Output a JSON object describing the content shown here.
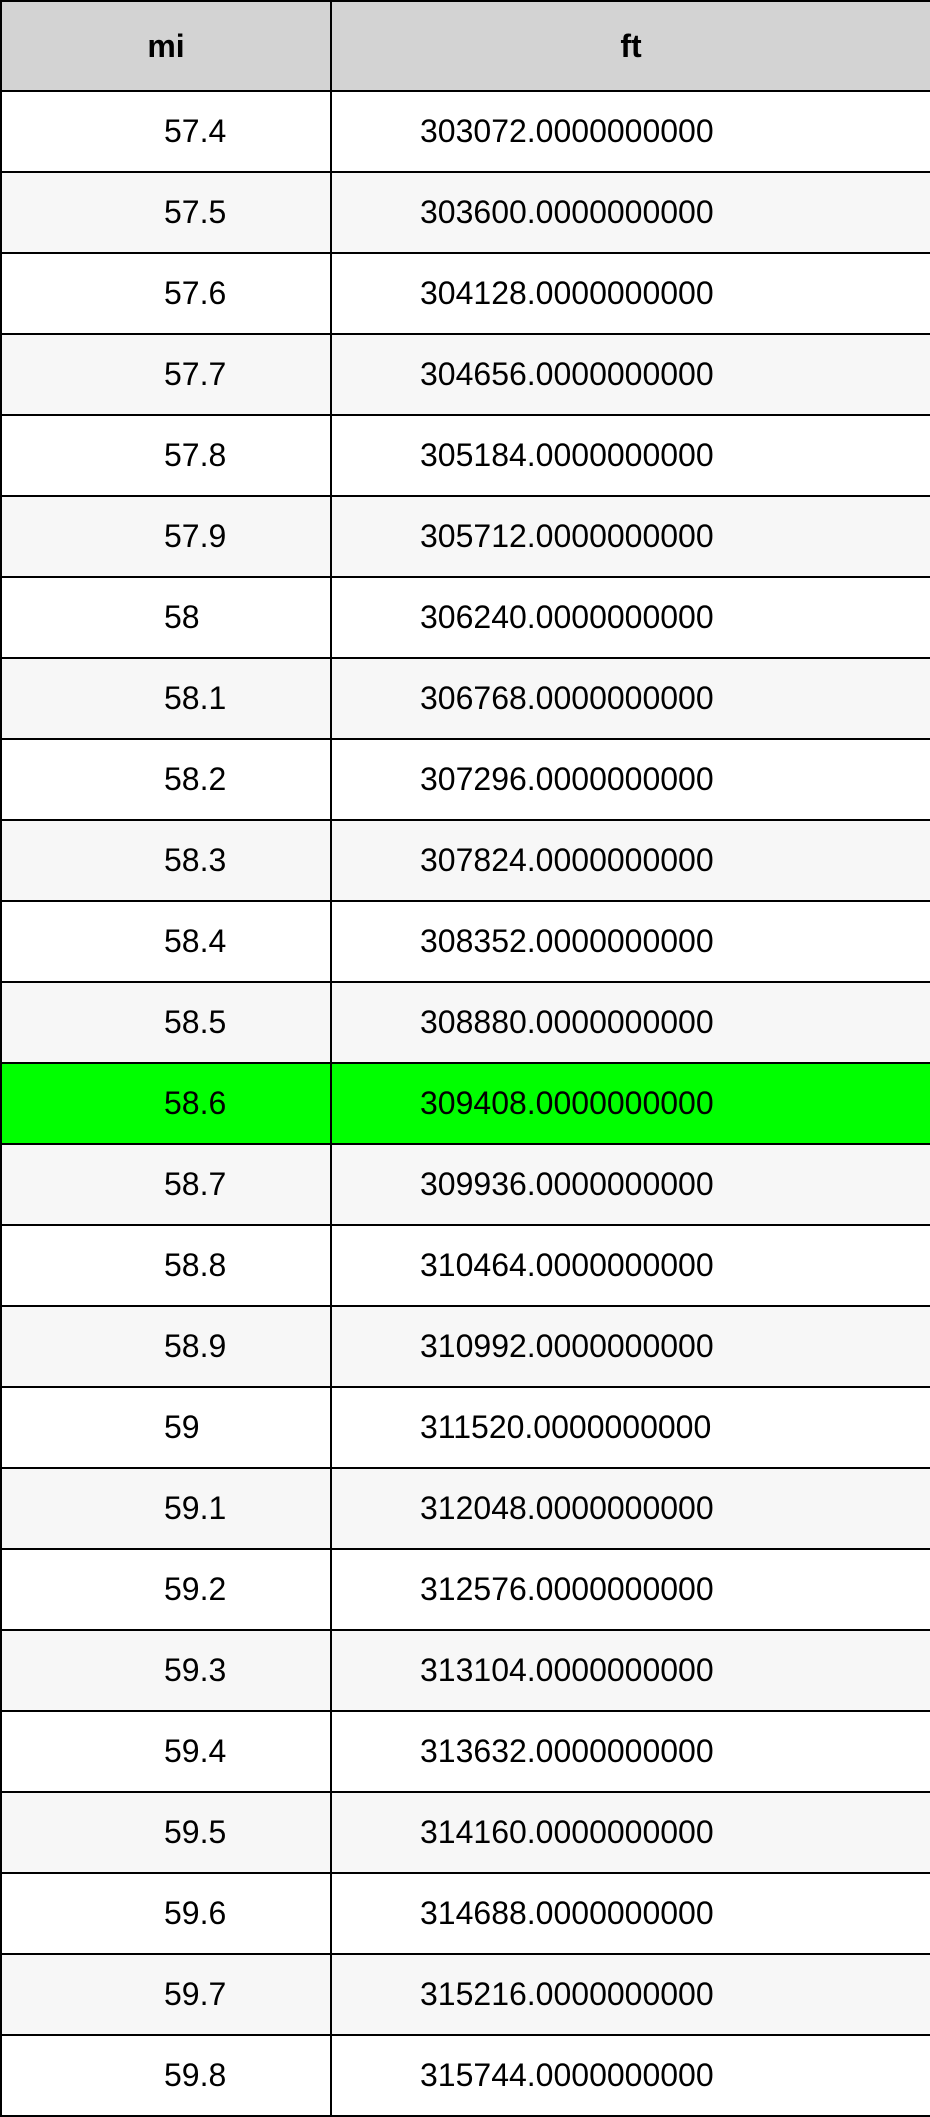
{
  "table": {
    "headers": [
      "mi",
      "ft"
    ],
    "header_bg": "#d3d3d3",
    "highlight_bg": "#00ff00",
    "odd_row_bg": "#ffffff",
    "even_row_bg": "#f7f7f7",
    "border_color": "#000000",
    "font_size": 32,
    "highlighted_index": 12,
    "rows": [
      {
        "mi": "57.4",
        "ft": "303072.0000000000"
      },
      {
        "mi": "57.5",
        "ft": "303600.0000000000"
      },
      {
        "mi": "57.6",
        "ft": "304128.0000000000"
      },
      {
        "mi": "57.7",
        "ft": "304656.0000000000"
      },
      {
        "mi": "57.8",
        "ft": "305184.0000000000"
      },
      {
        "mi": "57.9",
        "ft": "305712.0000000000"
      },
      {
        "mi": "58",
        "ft": "306240.0000000000"
      },
      {
        "mi": "58.1",
        "ft": "306768.0000000000"
      },
      {
        "mi": "58.2",
        "ft": "307296.0000000000"
      },
      {
        "mi": "58.3",
        "ft": "307824.0000000000"
      },
      {
        "mi": "58.4",
        "ft": "308352.0000000000"
      },
      {
        "mi": "58.5",
        "ft": "308880.0000000000"
      },
      {
        "mi": "58.6",
        "ft": "309408.0000000000"
      },
      {
        "mi": "58.7",
        "ft": "309936.0000000000"
      },
      {
        "mi": "58.8",
        "ft": "310464.0000000000"
      },
      {
        "mi": "58.9",
        "ft": "310992.0000000000"
      },
      {
        "mi": "59",
        "ft": "311520.0000000000"
      },
      {
        "mi": "59.1",
        "ft": "312048.0000000000"
      },
      {
        "mi": "59.2",
        "ft": "312576.0000000000"
      },
      {
        "mi": "59.3",
        "ft": "313104.0000000000"
      },
      {
        "mi": "59.4",
        "ft": "313632.0000000000"
      },
      {
        "mi": "59.5",
        "ft": "314160.0000000000"
      },
      {
        "mi": "59.6",
        "ft": "314688.0000000000"
      },
      {
        "mi": "59.7",
        "ft": "315216.0000000000"
      },
      {
        "mi": "59.8",
        "ft": "315744.0000000000"
      }
    ]
  }
}
